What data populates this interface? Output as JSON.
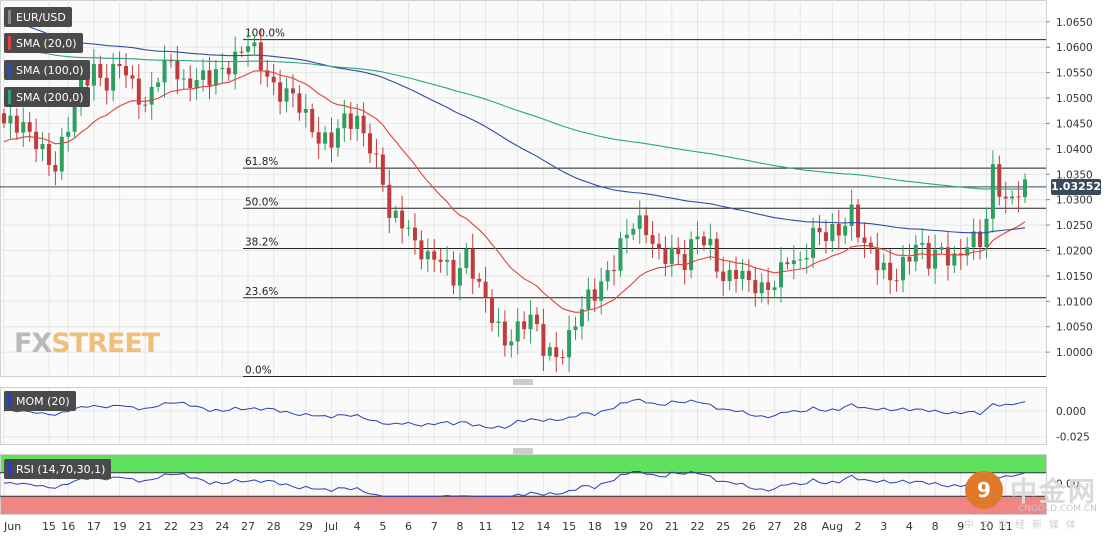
{
  "chart_data": {
    "type": "candlestick",
    "symbol": "EUR/USD",
    "price_axis": {
      "range": [
        0.9955,
        1.0685
      ],
      "ticks": [
        "1.0650",
        "1.0600",
        "1.0550",
        "1.0500",
        "1.0450",
        "1.0400",
        "1.0350",
        "1.0300",
        "1.0250",
        "1.0200",
        "1.0150",
        "1.0100",
        "1.0050",
        "1.0000"
      ],
      "tick_values": [
        1.065,
        1.06,
        1.055,
        1.05,
        1.045,
        1.04,
        1.035,
        1.03,
        1.025,
        1.02,
        1.015,
        1.01,
        1.005,
        1.0
      ]
    },
    "current_price": {
      "label": "1.03252",
      "value": 1.03252
    },
    "x_labels": [
      {
        "label": "Jun",
        "i": 0
      },
      {
        "label": "15",
        "i": 7
      },
      {
        "label": "16",
        "i": 10
      },
      {
        "label": "17",
        "i": 14
      },
      {
        "label": "19",
        "i": 18
      },
      {
        "label": "21",
        "i": 22
      },
      {
        "label": "22",
        "i": 26
      },
      {
        "label": "23",
        "i": 30
      },
      {
        "label": "24",
        "i": 34
      },
      {
        "label": "27",
        "i": 38
      },
      {
        "label": "28",
        "i": 42
      },
      {
        "label": "29",
        "i": 47
      },
      {
        "label": "Jul",
        "i": 51
      },
      {
        "label": "4",
        "i": 55
      },
      {
        "label": "5",
        "i": 59
      },
      {
        "label": "6",
        "i": 63
      },
      {
        "label": "7",
        "i": 67
      },
      {
        "label": "8",
        "i": 71
      },
      {
        "label": "11",
        "i": 75
      },
      {
        "label": "12",
        "i": 80
      },
      {
        "label": "14",
        "i": 84
      },
      {
        "label": "15",
        "i": 88
      },
      {
        "label": "18",
        "i": 92
      },
      {
        "label": "19",
        "i": 96
      },
      {
        "label": "20",
        "i": 100
      },
      {
        "label": "21",
        "i": 104
      },
      {
        "label": "22",
        "i": 108
      },
      {
        "label": "25",
        "i": 112
      },
      {
        "label": "26",
        "i": 116
      },
      {
        "label": "27",
        "i": 120
      },
      {
        "label": "28",
        "i": 124
      },
      {
        "label": "Aug",
        "i": 129
      },
      {
        "label": "2",
        "i": 133
      },
      {
        "label": "3",
        "i": 137
      },
      {
        "label": "4",
        "i": 141
      },
      {
        "label": "8",
        "i": 145
      },
      {
        "label": "9",
        "i": 149
      },
      {
        "label": "10",
        "i": 153
      },
      {
        "label": "11",
        "i": 156
      }
    ],
    "bar_count": 160,
    "anchors": [
      [
        0,
        1.045
      ],
      [
        5,
        1.042
      ],
      [
        8,
        1.037
      ],
      [
        10,
        1.044
      ],
      [
        12,
        1.052
      ],
      [
        14,
        1.056
      ],
      [
        16,
        1.054
      ],
      [
        18,
        1.057
      ],
      [
        20,
        1.051
      ],
      [
        22,
        1.048
      ],
      [
        24,
        1.056
      ],
      [
        26,
        1.058
      ],
      [
        28,
        1.051
      ],
      [
        30,
        1.053
      ],
      [
        33,
        1.056
      ],
      [
        36,
        1.057
      ],
      [
        38,
        1.06
      ],
      [
        40,
        1.057
      ],
      [
        42,
        1.053
      ],
      [
        45,
        1.05
      ],
      [
        47,
        1.045
      ],
      [
        49,
        1.042
      ],
      [
        51,
        1.043
      ],
      [
        53,
        1.046
      ],
      [
        55,
        1.044
      ],
      [
        57,
        1.04
      ],
      [
        59,
        1.035
      ],
      [
        60,
        1.028
      ],
      [
        62,
        1.026
      ],
      [
        64,
        1.02
      ],
      [
        66,
        1.018
      ],
      [
        68,
        1.02
      ],
      [
        70,
        1.015
      ],
      [
        72,
        1.018
      ],
      [
        74,
        1.012
      ],
      [
        76,
        1.008
      ],
      [
        78,
        1.003
      ],
      [
        80,
        1.004
      ],
      [
        82,
        1.006
      ],
      [
        84,
        1.001
      ],
      [
        86,
        1.0
      ],
      [
        88,
        1.003
      ],
      [
        90,
        1.008
      ],
      [
        92,
        1.011
      ],
      [
        94,
        1.016
      ],
      [
        96,
        1.022
      ],
      [
        98,
        1.025
      ],
      [
        100,
        1.023
      ],
      [
        102,
        1.019
      ],
      [
        104,
        1.021
      ],
      [
        106,
        1.018
      ],
      [
        108,
        1.022
      ],
      [
        110,
        1.02
      ],
      [
        112,
        1.015
      ],
      [
        114,
        1.017
      ],
      [
        116,
        1.013
      ],
      [
        118,
        1.011
      ],
      [
        120,
        1.014
      ],
      [
        122,
        1.02
      ],
      [
        124,
        1.017
      ],
      [
        126,
        1.022
      ],
      [
        128,
        1.023
      ],
      [
        130,
        1.025
      ],
      [
        132,
        1.028
      ],
      [
        134,
        1.02
      ],
      [
        136,
        1.017
      ],
      [
        138,
        1.015
      ],
      [
        140,
        1.018
      ],
      [
        142,
        1.021
      ],
      [
        144,
        1.017
      ],
      [
        146,
        1.02
      ],
      [
        148,
        1.019
      ],
      [
        150,
        1.022
      ],
      [
        152,
        1.021
      ],
      [
        153,
        1.025
      ],
      [
        154,
        1.035
      ],
      [
        156,
        1.03
      ],
      [
        158,
        1.033
      ],
      [
        159,
        1.0325
      ]
    ],
    "ema_bar_count": [
      20,
      100,
      200
    ],
    "fib_levels": [
      {
        "label": "100.0%",
        "value": 1.0615
      },
      {
        "label": "61.8%",
        "value": 1.0362
      },
      {
        "label": "50.0%",
        "value": 1.0283
      },
      {
        "label": "38.2%",
        "value": 1.0204
      },
      {
        "label": "23.6%",
        "value": 1.0107
      },
      {
        "label": "0.0%",
        "value": 0.9952
      }
    ],
    "momentum": {
      "ticks": [
        "0.000",
        "-0.025"
      ],
      "tick_values": [
        0.0,
        -0.025
      ],
      "range": [
        -0.032,
        0.022
      ]
    },
    "rsi": {
      "ticks": [
        "0.00"
      ],
      "overbought": 70,
      "oversold": 30,
      "range": [
        0,
        100
      ]
    }
  },
  "legends": {
    "pair": "EUR/USD",
    "sma20": "SMA (20,0)",
    "sma100": "SMA (100,0)",
    "sma200": "SMA (200,0)",
    "mom": "MOM (20)",
    "rsi": "RSI (14,70,30,1)"
  },
  "colors": {
    "bull": "#2f9e61",
    "bear": "#c23b3b",
    "sma20": "#e2413a",
    "sma100": "#2d4f9e",
    "sma200": "#2aa57f",
    "mom": "#2a3fb5",
    "rsi": "#2a3fb5",
    "grid": "#e6e6e6"
  },
  "watermark": {
    "fx": "FX",
    "street": "STREET"
  },
  "brand": {
    "name": "中金网",
    "url": "CNGOLD.COM.CN",
    "sub": "中文财经新媒体",
    "mark": "9"
  }
}
